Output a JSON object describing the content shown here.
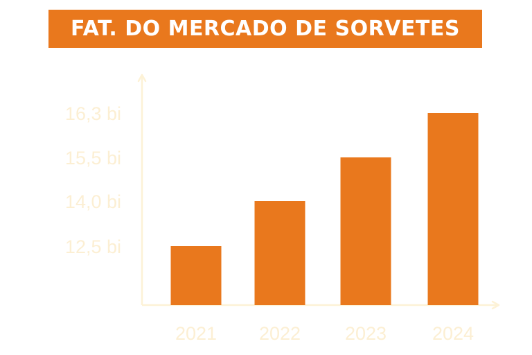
{
  "colors": {
    "bar": "#e9781d",
    "title_bg": "#e9781d",
    "title_text": "#ffffff",
    "axis": "#fdf2d6",
    "labels": "#fcefd3"
  },
  "chart_data": {
    "type": "bar",
    "title": "FAT. DO MERCADO DE SORVETES",
    "xlabel": "",
    "ylabel": "",
    "categories": [
      "2021",
      "2022",
      "2023",
      "2024"
    ],
    "values": [
      12.5,
      14.0,
      15.5,
      16.3
    ],
    "y_ticks": [
      {
        "value": 12.5,
        "label": "12,5 bi"
      },
      {
        "value": 14.0,
        "label": "14,0 bi"
      },
      {
        "value": 15.5,
        "label": "15,5 bi"
      },
      {
        "value": 16.3,
        "label": "16,3 bi"
      }
    ],
    "grid": false,
    "legend": "none"
  }
}
